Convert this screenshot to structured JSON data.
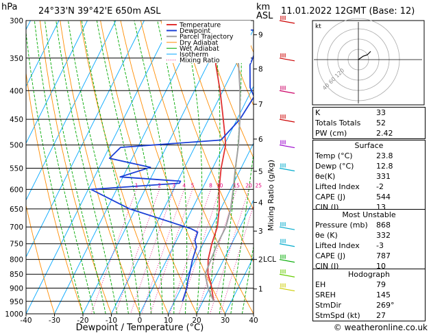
{
  "header": {
    "hpa": "hPa",
    "location": "24°33'N  39°42'E  650m  ASL",
    "km": "km",
    "asl": "ASL",
    "datetime": "11.01.2022  12GMT  (Base: 12)",
    "footer": "© weatheronline.co.uk"
  },
  "chart_data": {
    "type": "line",
    "xlabel": "Dewpoint / Temperature (°C)",
    "ylabel_right": "Mixing Ratio (g/kg)",
    "xlim": [
      -40,
      40
    ],
    "ylim": [
      1000,
      300
    ],
    "x_ticks": [
      "-40",
      "-30",
      "-20",
      "-10",
      "0",
      "10",
      "20",
      "30",
      "40"
    ],
    "p_ticks": [
      "300",
      "350",
      "400",
      "450",
      "500",
      "550",
      "600",
      "650",
      "700",
      "750",
      "800",
      "850",
      "900",
      "950",
      "1000"
    ],
    "km_ticks": [
      {
        "label": "9",
        "p": 318
      },
      {
        "label": "8",
        "p": 366
      },
      {
        "label": "7",
        "p": 423
      },
      {
        "label": "6",
        "p": 488
      },
      {
        "label": "5",
        "p": 557
      },
      {
        "label": "4",
        "p": 633
      },
      {
        "label": "3",
        "p": 712
      },
      {
        "label": "2",
        "p": 800
      },
      {
        "label": "1",
        "p": 903
      }
    ],
    "lcl": {
      "label": "LCL",
      "p": 798
    },
    "mixing_ratio_labels": [
      "1",
      "2",
      "3",
      "4",
      "5",
      "8",
      "10",
      "15",
      "20",
      "25"
    ],
    "mixing_ratio_values": [
      1,
      2,
      3,
      4,
      5,
      8,
      10,
      15,
      20,
      25
    ],
    "legend": [
      "Temperature",
      "Dewpoint",
      "Parcel Trajectory",
      "Dry Adiabat",
      "Wet Adiabat",
      "Isotherm",
      "Mixing Ratio"
    ],
    "series": [
      {
        "name": "Temperature",
        "color": "#e03030",
        "points": [
          [
            23.8,
            950
          ],
          [
            22,
            920
          ],
          [
            19.5,
            880
          ],
          [
            17,
            850
          ],
          [
            14.5,
            800
          ],
          [
            13,
            750
          ],
          [
            12,
            700
          ],
          [
            9.5,
            650
          ],
          [
            6,
            600
          ],
          [
            3,
            550
          ],
          [
            0.5,
            500
          ],
          [
            -1.5,
            480
          ],
          [
            -6,
            440
          ],
          [
            -11,
            400
          ],
          [
            -17,
            360
          ],
          [
            -22.5,
            320
          ],
          [
            -20.5,
            305
          ],
          [
            -16,
            300
          ]
        ]
      },
      {
        "name": "Dewpoint",
        "color": "#1a3fd6",
        "points": [
          [
            12.8,
            950
          ],
          [
            12.5,
            930
          ],
          [
            12,
            900
          ],
          [
            11,
            870
          ],
          [
            10.5,
            850
          ],
          [
            9,
            800
          ],
          [
            8.2,
            760
          ],
          [
            6.5,
            740
          ],
          [
            6,
            715
          ],
          [
            3,
            705
          ],
          [
            -22,
            650
          ],
          [
            -39,
            600
          ],
          [
            -9,
            585
          ],
          [
            -9,
            580
          ],
          [
            -31,
            570
          ],
          [
            -22,
            548
          ],
          [
            -38,
            528
          ],
          [
            -36,
            505
          ],
          [
            -2,
            490
          ],
          [
            1,
            450
          ],
          [
            2,
            410
          ],
          [
            -1,
            395
          ],
          [
            -5,
            360
          ],
          [
            -6,
            320
          ],
          [
            -6,
            312
          ],
          [
            -42,
            312
          ],
          [
            -36,
            302
          ],
          [
            -34,
            300
          ]
        ]
      },
      {
        "name": "Parcel Trajectory",
        "color": "#a0a0a0",
        "points": [
          [
            23.8,
            950
          ],
          [
            19.5,
            900
          ],
          [
            16,
            850
          ],
          [
            15.5,
            800
          ],
          [
            15,
            750
          ],
          [
            15,
            700
          ],
          [
            13.5,
            650
          ],
          [
            11,
            600
          ],
          [
            8,
            550
          ],
          [
            5,
            500
          ],
          [
            1,
            450
          ],
          [
            -4,
            400
          ],
          [
            -9,
            360
          ],
          [
            -13,
            335
          ],
          [
            -16,
            320
          ]
        ]
      }
    ],
    "colors": {
      "dry_adiabat": "#ff8c00",
      "wet_adiabat": "#00aa00",
      "isotherm": "#00a6ff",
      "mixing_ratio": "#e4007c",
      "wind": "#cc0000"
    }
  },
  "hodograph": {
    "label": "kt",
    "rings": [
      "40",
      "60",
      "120"
    ]
  },
  "indices": [
    {
      "k": "K",
      "v": "33"
    },
    {
      "k": "Totals Totals",
      "v": "52"
    },
    {
      "k": "PW (cm)",
      "v": "2.42"
    }
  ],
  "surface": {
    "title": "Surface",
    "rows": [
      {
        "k": "Temp (°C)",
        "v": "23.8"
      },
      {
        "k": "Dewp (°C)",
        "v": "12.8"
      },
      {
        "k": "θe(K)",
        "v": "331"
      },
      {
        "k": "Lifted Index",
        "v": "-2"
      },
      {
        "k": "CAPE (J)",
        "v": "544"
      },
      {
        "k": "CIN (J)",
        "v": "13"
      }
    ]
  },
  "unstable": {
    "title": "Most Unstable",
    "rows": [
      {
        "k": "Pressure (mb)",
        "v": "868"
      },
      {
        "k": "θe (K)",
        "v": "332"
      },
      {
        "k": "Lifted Index",
        "v": "-3"
      },
      {
        "k": "CAPE (J)",
        "v": "787"
      },
      {
        "k": "CIN (J)",
        "v": "10"
      }
    ]
  },
  "hodo_box": {
    "title": "Hodograph",
    "rows": [
      {
        "k": "EH",
        "v": "79"
      },
      {
        "k": "SREH",
        "v": "145"
      },
      {
        "k": "StmDir",
        "v": "269°"
      },
      {
        "k": "StmSpd (kt)",
        "v": "27"
      }
    ]
  }
}
